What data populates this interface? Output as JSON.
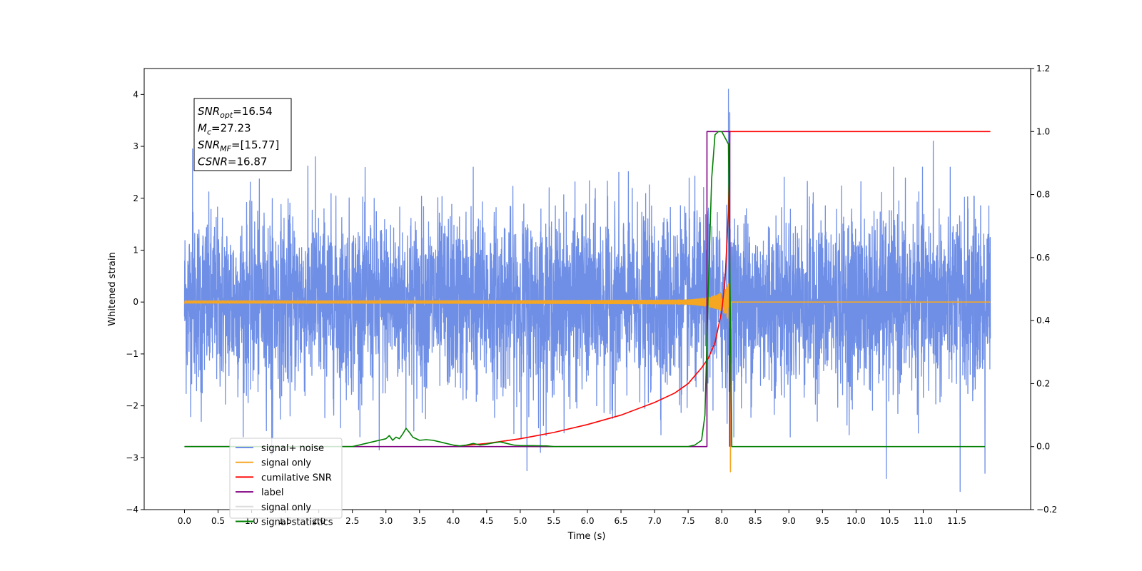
{
  "chart_data": {
    "type": "line",
    "xlabel": "Time (s)",
    "ylabel": "Whitened strain",
    "xlim": [
      -0.6,
      12.6
    ],
    "ylim": [
      -4,
      4.5
    ],
    "ylim_right": [
      -0.2,
      1.2
    ],
    "xticks": [
      0.0,
      0.5,
      1.0,
      1.5,
      2.0,
      2.5,
      3.0,
      3.5,
      4.0,
      4.5,
      5.0,
      5.5,
      6.0,
      6.5,
      7.0,
      7.5,
      8.0,
      8.5,
      9.0,
      9.5,
      10.0,
      10.5,
      11.0,
      11.5
    ],
    "xtick_labels": [
      "0.0",
      "0.5",
      "1.0",
      "1.5",
      "2.0",
      "2.5",
      "3.0",
      "3.5",
      "4.0",
      "4.5",
      "5.0",
      "5.5",
      "6.0",
      "6.5",
      "7.0",
      "7.5",
      "8.0",
      "8.5",
      "9.0",
      "9.5",
      "10.0",
      "10.5",
      "11.0",
      "11.5"
    ],
    "yticks_left": [
      -4,
      -3,
      -2,
      -1,
      0,
      1,
      2,
      3,
      4
    ],
    "yticks_left_labels": [
      "−4",
      "−3",
      "−2",
      "−1",
      "0",
      "1",
      "2",
      "3",
      "4"
    ],
    "yticks_right": [
      -0.2,
      0.0,
      0.2,
      0.4,
      0.6,
      0.8,
      1.0,
      1.2
    ],
    "yticks_right_labels": [
      "−0.2",
      "0.0",
      "0.2",
      "0.4",
      "0.6",
      "0.8",
      "1.0",
      "1.2"
    ],
    "grid": false,
    "legend_position": "bottom-left",
    "series": [
      {
        "name": "signal+ noise",
        "axis": "left",
        "color": "#6f8fe6",
        "t_start": 0.0,
        "t_end": 12.0,
        "noise_std": 0.85,
        "extremes": [
          [
            0.12,
            2.95
          ],
          [
            0.25,
            -2.3
          ],
          [
            1.3,
            -2.95
          ],
          [
            1.95,
            2.8
          ],
          [
            2.9,
            -2.85
          ],
          [
            4.3,
            2.6
          ],
          [
            5.1,
            -3.25
          ],
          [
            5.3,
            -2.9
          ],
          [
            8.1,
            4.1
          ],
          [
            8.12,
            3.65
          ],
          [
            8.13,
            -3.2
          ],
          [
            10.45,
            -3.4
          ],
          [
            11.15,
            3.1
          ],
          [
            11.55,
            -3.65
          ],
          [
            11.92,
            -3.3
          ]
        ]
      },
      {
        "name": "signal only",
        "axis": "left",
        "color": "#f5a623",
        "t_start": 0.0,
        "t_end": 12.0,
        "merger_time": 8.12,
        "peak_amplitude": 3.2,
        "min_value": -3.27
      },
      {
        "name": "cumilative SNR",
        "axis": "right",
        "color": "#ff0000",
        "x": [
          4.0,
          4.5,
          5.0,
          5.5,
          6.0,
          6.5,
          7.0,
          7.3,
          7.5,
          7.7,
          7.8,
          7.9,
          8.0,
          8.05,
          8.1,
          8.12,
          8.15,
          12.0
        ],
        "y": [
          0.0,
          0.01,
          0.025,
          0.045,
          0.07,
          0.1,
          0.14,
          0.17,
          0.2,
          0.25,
          0.28,
          0.33,
          0.43,
          0.53,
          0.75,
          1.0,
          1.0,
          1.0
        ]
      },
      {
        "name": "label",
        "axis": "right",
        "color": "#800080",
        "x": [
          0.0,
          7.78,
          7.78,
          8.12,
          8.12
        ],
        "y": [
          0.0,
          0.0,
          1.0,
          1.0,
          0.0
        ]
      },
      {
        "name": "signal only",
        "axis": "right",
        "color": "#dddddd",
        "legend_only": true
      },
      {
        "name": "signal statistics",
        "axis": "right",
        "color": "#008000",
        "x": [
          0.0,
          2.5,
          2.6,
          2.7,
          2.8,
          2.9,
          3.0,
          3.05,
          3.1,
          3.15,
          3.2,
          3.25,
          3.3,
          3.35,
          3.4,
          3.5,
          3.6,
          3.7,
          3.8,
          3.9,
          4.0,
          4.1,
          4.2,
          4.3,
          4.4,
          4.5,
          4.6,
          4.7,
          4.8,
          4.9,
          5.0,
          5.2,
          5.4,
          5.5,
          7.5,
          7.6,
          7.7,
          7.75,
          7.8,
          7.85,
          7.9,
          7.95,
          8.0,
          8.05,
          8.1,
          8.15,
          8.18,
          11.92
        ],
        "y": [
          0.0,
          0.0,
          0.005,
          0.01,
          0.015,
          0.02,
          0.025,
          0.035,
          0.02,
          0.03,
          0.025,
          0.04,
          0.058,
          0.045,
          0.03,
          0.02,
          0.022,
          0.02,
          0.015,
          0.01,
          0.005,
          0.002,
          0.005,
          0.01,
          0.005,
          0.008,
          0.012,
          0.015,
          0.01,
          0.005,
          0.003,
          0.003,
          0.002,
          0.0,
          0.0,
          0.005,
          0.02,
          0.1,
          0.5,
          0.85,
          0.99,
          1.0,
          1.0,
          0.98,
          0.96,
          0.0,
          0.0,
          0.0
        ]
      }
    ],
    "annotation": {
      "lines": [
        {
          "base": "SNR",
          "sub": "opt",
          "value": "=16.54"
        },
        {
          "base": "M",
          "sub": "c",
          "value": "=27.23"
        },
        {
          "base": "SNR",
          "sub": "MF",
          "value": "=[15.77]"
        },
        {
          "base": "CSNR",
          "sub": "",
          "value": "=16.87"
        }
      ]
    }
  }
}
